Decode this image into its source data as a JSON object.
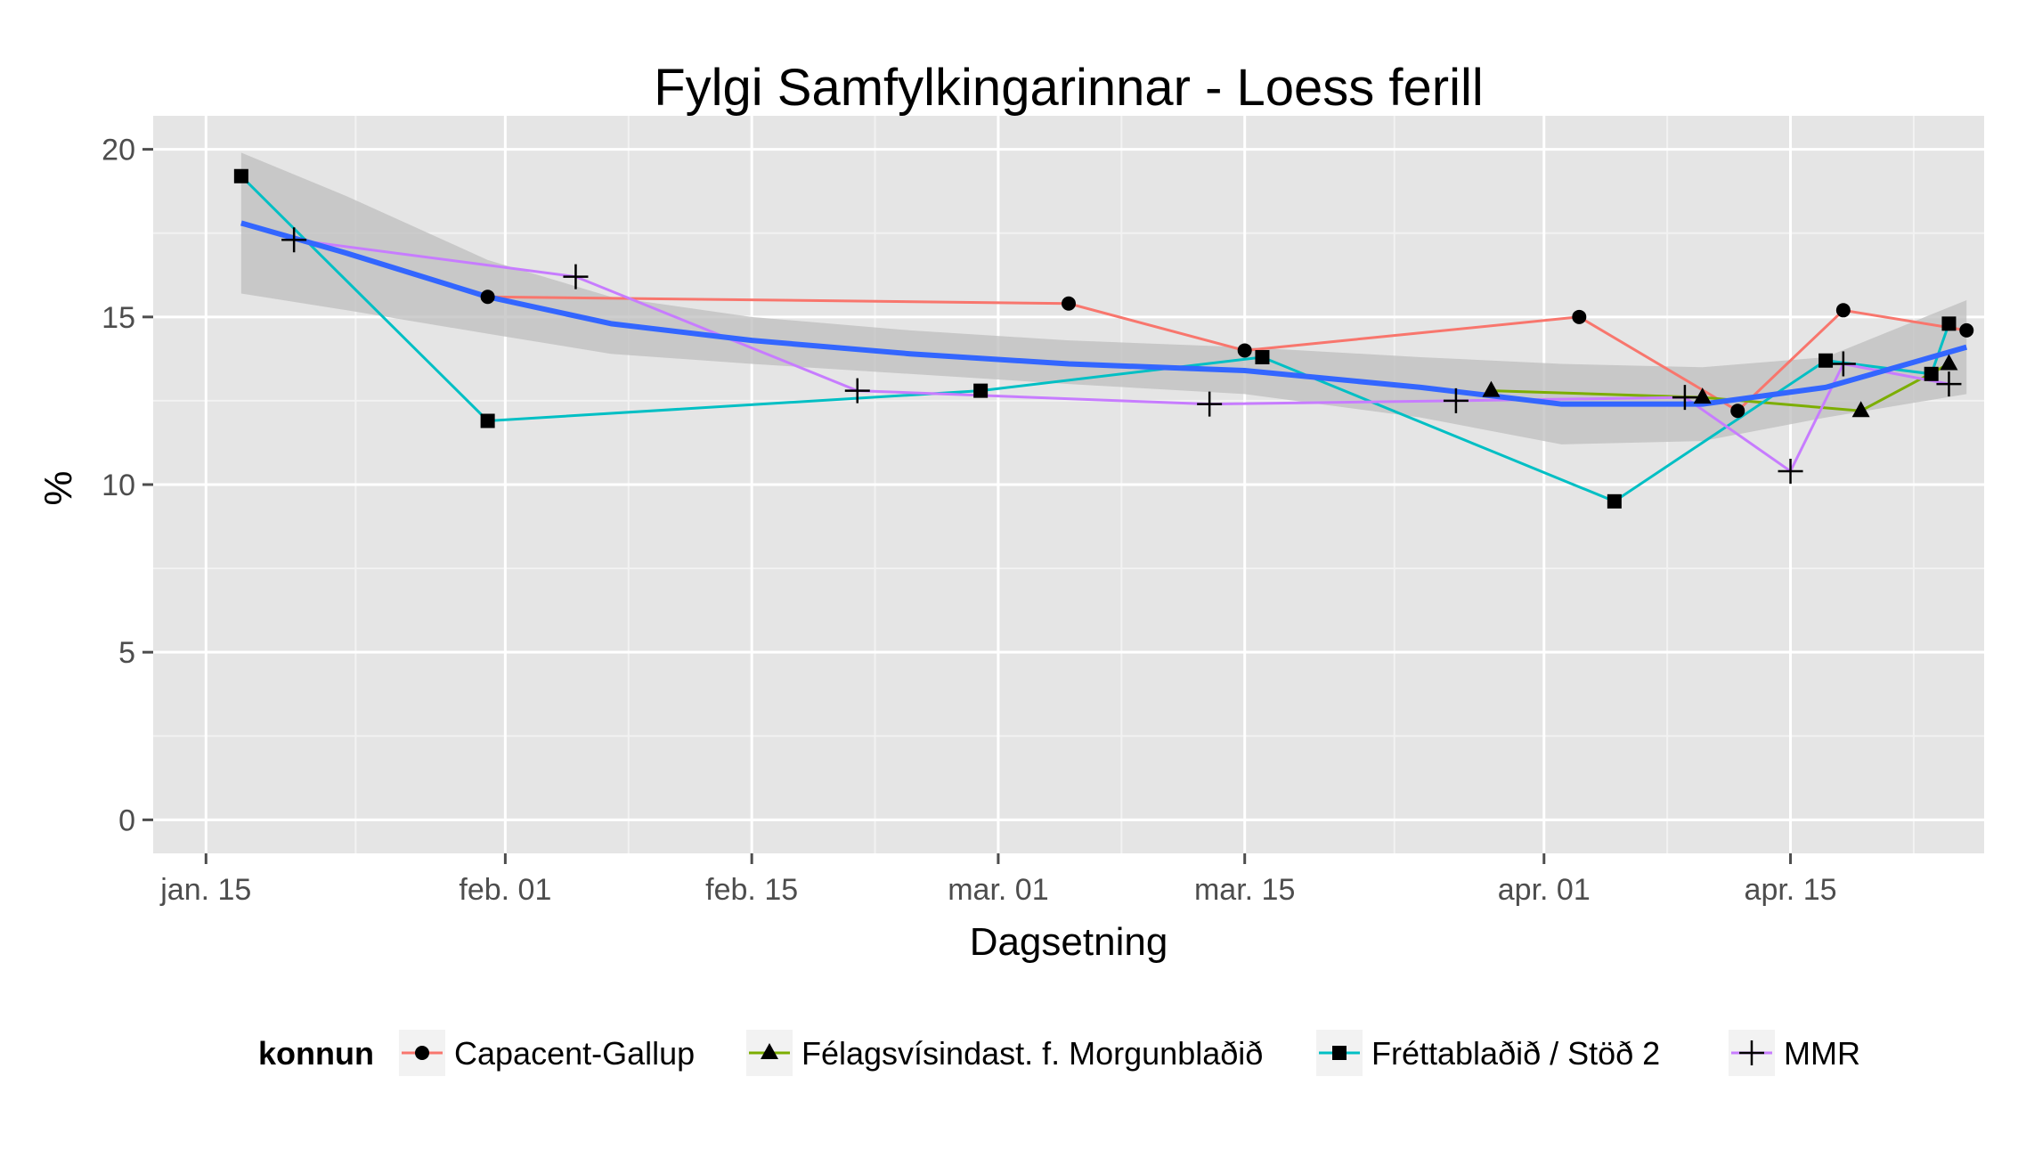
{
  "chart_data": {
    "type": "line",
    "title": "Fylgi Samfylkingarinnar - Loess ferill",
    "xlabel": "Dagsetning",
    "ylabel": "%",
    "x_tick_labels": [
      "jan. 15",
      "feb. 01",
      "feb. 15",
      "mar. 01",
      "mar. 15",
      "apr. 01",
      "apr. 15"
    ],
    "x_tick_dates": [
      "2013-01-15",
      "2013-02-01",
      "2013-02-15",
      "2013-03-01",
      "2013-03-15",
      "2013-04-01",
      "2013-04-15"
    ],
    "xlim": [
      "2013-01-12",
      "2013-04-26"
    ],
    "y_ticks": [
      0,
      5,
      10,
      15,
      20
    ],
    "ylim": [
      -1,
      21
    ],
    "grid": true,
    "legend": {
      "title": "konnun",
      "position": "bottom"
    },
    "series": [
      {
        "name": "Capacent-Gallup",
        "color": "#F8766D",
        "marker": "circle",
        "points": [
          {
            "x": "2013-01-31",
            "y": 15.6
          },
          {
            "x": "2013-03-05",
            "y": 15.4
          },
          {
            "x": "2013-03-15",
            "y": 14.0
          },
          {
            "x": "2013-04-03",
            "y": 15.0
          },
          {
            "x": "2013-04-12",
            "y": 12.2
          },
          {
            "x": "2013-04-18",
            "y": 15.2
          },
          {
            "x": "2013-04-25",
            "y": 14.6
          }
        ]
      },
      {
        "name": "Félagsvísindast. f. Morgunblaðið",
        "color": "#7CAE00",
        "marker": "triangle",
        "points": [
          {
            "x": "2013-03-29",
            "y": 12.8
          },
          {
            "x": "2013-04-10",
            "y": 12.6
          },
          {
            "x": "2013-04-19",
            "y": 12.2
          },
          {
            "x": "2013-04-24",
            "y": 13.6
          }
        ]
      },
      {
        "name": "Fréttablaðið / Stöð 2",
        "color": "#00BFC4",
        "marker": "square",
        "points": [
          {
            "x": "2013-01-17",
            "y": 19.2
          },
          {
            "x": "2013-01-31",
            "y": 11.9
          },
          {
            "x": "2013-02-28",
            "y": 12.8
          },
          {
            "x": "2013-03-16",
            "y": 13.8
          },
          {
            "x": "2013-04-05",
            "y": 9.5
          },
          {
            "x": "2013-04-17",
            "y": 13.7
          },
          {
            "x": "2013-04-23",
            "y": 13.3
          },
          {
            "x": "2013-04-24",
            "y": 14.8
          }
        ]
      },
      {
        "name": "MMR",
        "color": "#C77CFF",
        "marker": "plus",
        "points": [
          {
            "x": "2013-01-20",
            "y": 17.3
          },
          {
            "x": "2013-02-05",
            "y": 16.2
          },
          {
            "x": "2013-02-21",
            "y": 12.8
          },
          {
            "x": "2013-03-13",
            "y": 12.4
          },
          {
            "x": "2013-03-27",
            "y": 12.5
          },
          {
            "x": "2013-04-09",
            "y": 12.6
          },
          {
            "x": "2013-04-15",
            "y": 10.4
          },
          {
            "x": "2013-04-18",
            "y": 13.6
          },
          {
            "x": "2013-04-24",
            "y": 13.0
          }
        ]
      }
    ],
    "loess": {
      "color": "#3366FF",
      "band_color": "#bdbdbd",
      "points": [
        {
          "x": "2013-01-17",
          "y": 17.8,
          "lo": 15.7,
          "hi": 19.9
        },
        {
          "x": "2013-01-23",
          "y": 16.9,
          "lo": 15.2,
          "hi": 18.6
        },
        {
          "x": "2013-01-31",
          "y": 15.6,
          "lo": 14.5,
          "hi": 16.7
        },
        {
          "x": "2013-02-07",
          "y": 14.8,
          "lo": 13.9,
          "hi": 15.6
        },
        {
          "x": "2013-02-15",
          "y": 14.3,
          "lo": 13.6,
          "hi": 15.0
        },
        {
          "x": "2013-02-24",
          "y": 13.9,
          "lo": 13.3,
          "hi": 14.6
        },
        {
          "x": "2013-03-05",
          "y": 13.6,
          "lo": 13.0,
          "hi": 14.3
        },
        {
          "x": "2013-03-15",
          "y": 13.4,
          "lo": 12.7,
          "hi": 14.1
        },
        {
          "x": "2013-03-25",
          "y": 12.9,
          "lo": 12.0,
          "hi": 13.8
        },
        {
          "x": "2013-04-02",
          "y": 12.4,
          "lo": 11.2,
          "hi": 13.6
        },
        {
          "x": "2013-04-10",
          "y": 12.4,
          "lo": 11.3,
          "hi": 13.5
        },
        {
          "x": "2013-04-17",
          "y": 12.9,
          "lo": 12.0,
          "hi": 13.8
        },
        {
          "x": "2013-04-25",
          "y": 14.1,
          "lo": 12.7,
          "hi": 15.5
        }
      ]
    }
  }
}
